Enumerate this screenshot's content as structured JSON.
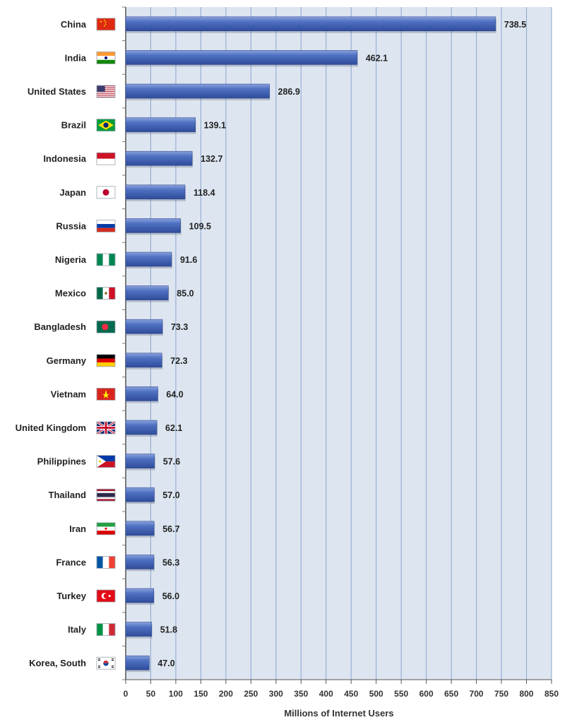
{
  "chart_data": {
    "type": "bar",
    "orientation": "horizontal",
    "categories": [
      "China",
      "India",
      "United States",
      "Brazil",
      "Indonesia",
      "Japan",
      "Russia",
      "Nigeria",
      "Mexico",
      "Bangladesh",
      "Germany",
      "Vietnam",
      "United Kingdom",
      "Philippines",
      "Thailand",
      "Iran",
      "France",
      "Turkey",
      "Italy",
      "Korea, South"
    ],
    "values": [
      738.5,
      462.1,
      286.9,
      139.1,
      132.7,
      118.4,
      109.5,
      91.6,
      85.0,
      73.3,
      72.3,
      64.0,
      62.1,
      57.6,
      57.0,
      56.7,
      56.3,
      56.0,
      51.8,
      47.0
    ],
    "value_labels": [
      "738.5",
      "462.1",
      "286.9",
      "139.1",
      "132.7",
      "118.4",
      "109.5",
      "91.6",
      "85.0",
      "73.3",
      "72.3",
      "64.0",
      "62.1",
      "57.6",
      "57.0",
      "56.7",
      "56.3",
      "56.0",
      "51.8",
      "47.0"
    ],
    "flag_icons": [
      "china-flag-icon",
      "india-flag-icon",
      "united-states-flag-icon",
      "brazil-flag-icon",
      "indonesia-flag-icon",
      "japan-flag-icon",
      "russia-flag-icon",
      "nigeria-flag-icon",
      "mexico-flag-icon",
      "bangladesh-flag-icon",
      "germany-flag-icon",
      "vietnam-flag-icon",
      "united-kingdom-flag-icon",
      "philippines-flag-icon",
      "thailand-flag-icon",
      "iran-flag-icon",
      "france-flag-icon",
      "turkey-flag-icon",
      "italy-flag-icon",
      "korea-south-flag-icon"
    ],
    "xlabel": "Millions of Internet Users",
    "ylabel": "",
    "title": "",
    "xlim": [
      0,
      850
    ],
    "xticks": [
      0,
      50,
      100,
      150,
      200,
      250,
      300,
      350,
      400,
      450,
      500,
      550,
      600,
      650,
      700,
      750,
      800,
      850
    ],
    "grid": "vertical",
    "legend": "none",
    "colors": {
      "bar": "#4466b8",
      "bar_light": "#7d97d6",
      "bar_dark": "#2e4a94",
      "plot_background": "#dde5f0",
      "gridline": "#8aa6cf",
      "label_text": "#222222",
      "axis_text": "#333333"
    }
  }
}
